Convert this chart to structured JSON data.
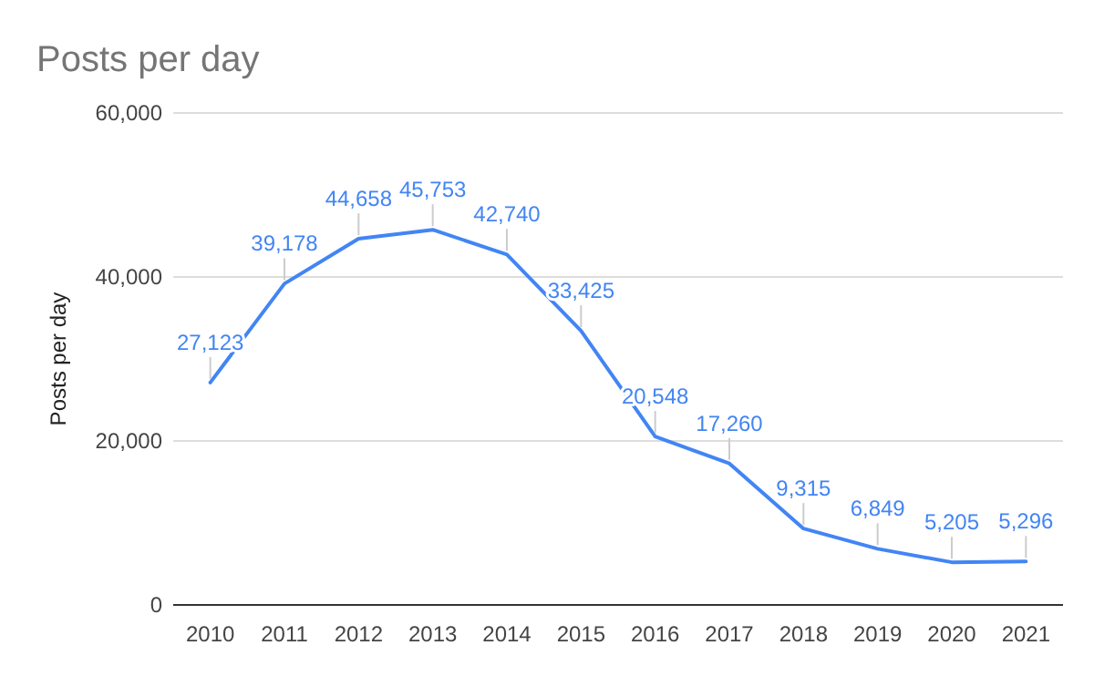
{
  "chart_data": {
    "type": "line",
    "title": "Posts per day",
    "ylabel": "Posts per day",
    "categories": [
      "2010",
      "2011",
      "2012",
      "2013",
      "2014",
      "2015",
      "2016",
      "2017",
      "2018",
      "2019",
      "2020",
      "2021"
    ],
    "series": [
      {
        "color": "#4285f4",
        "values": [
          27123,
          39178,
          44658,
          45753,
          42740,
          33425,
          20548,
          17260,
          9315,
          6849,
          5205,
          5296
        ],
        "value_labels": [
          "27,123",
          "39,178",
          "44,658",
          "45,753",
          "42,740",
          "33,425",
          "20,548",
          "17,260",
          "9,315",
          "6,849",
          "5,205",
          "5,296"
        ]
      }
    ],
    "ylim": [
      0,
      60000
    ],
    "yticks": [
      {
        "value": 0,
        "label": "0"
      },
      {
        "value": 20000,
        "label": "20,000"
      },
      {
        "value": 40000,
        "label": "40,000"
      },
      {
        "value": 60000,
        "label": "60,000"
      }
    ],
    "grid": "y",
    "marker": "none",
    "line_style": "solid"
  }
}
